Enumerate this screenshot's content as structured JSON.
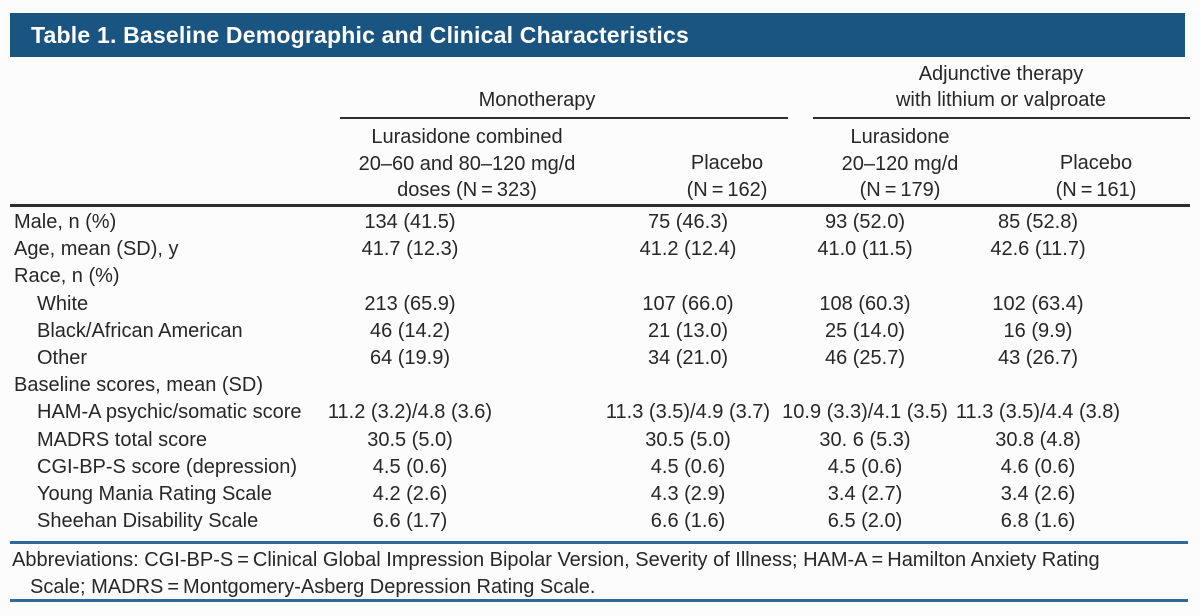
{
  "title": "Table 1. Baseline Demographic and Clinical Characteristics",
  "group_headers": {
    "monotherapy": "Monotherapy",
    "adjunctive_line1": "Adjunctive therapy",
    "adjunctive_line2": "with lithium or valproate"
  },
  "column_headers": [
    {
      "lines": [
        "Lurasidone combined",
        "20–60 and 80–120 mg/d",
        "doses (N = 323)"
      ]
    },
    {
      "lines": [
        "Placebo",
        "(N = 162)"
      ]
    },
    {
      "lines": [
        "Lurasidone",
        "20–120 mg/d",
        "(N = 179)"
      ]
    },
    {
      "lines": [
        "Placebo",
        "(N = 161)"
      ]
    }
  ],
  "rows": [
    {
      "label": "Male, n (%)",
      "indent": false,
      "values": [
        "134 (41.5)",
        "75 (46.3)",
        "93 (52.0)",
        "85 (52.8)"
      ]
    },
    {
      "label": "Age, mean (SD), y",
      "indent": false,
      "values": [
        "41.7 (12.3)",
        "41.2 (12.4)",
        "41.0 (11.5)",
        "42.6 (11.7)"
      ]
    },
    {
      "label": "Race, n (%)",
      "indent": false,
      "values": [
        "",
        "",
        "",
        ""
      ]
    },
    {
      "label": "White",
      "indent": true,
      "values": [
        "213 (65.9)",
        "107 (66.0)",
        "108 (60.3)",
        "102 (63.4)"
      ]
    },
    {
      "label": "Black/African American",
      "indent": true,
      "values": [
        "46 (14.2)",
        "21 (13.0)",
        "25 (14.0)",
        "16 (9.9)"
      ]
    },
    {
      "label": "Other",
      "indent": true,
      "values": [
        "64 (19.9)",
        "34 (21.0)",
        "46 (25.7)",
        "43 (26.7)"
      ]
    },
    {
      "label": "Baseline scores, mean (SD)",
      "indent": false,
      "values": [
        "",
        "",
        "",
        ""
      ]
    },
    {
      "label": "HAM-A psychic/somatic score",
      "indent": true,
      "values": [
        "11.2 (3.2)/4.8 (3.6)",
        "11.3 (3.5)/4.9 (3.7)",
        "10.9 (3.3)/4.1 (3.5)",
        "11.3 (3.5)/4.4 (3.8)"
      ]
    },
    {
      "label": "MADRS total score",
      "indent": true,
      "values": [
        "30.5 (5.0)",
        "30.5 (5.0)",
        "30. 6 (5.3)",
        "30.8 (4.8)"
      ]
    },
    {
      "label": "CGI-BP-S score (depression)",
      "indent": true,
      "values": [
        "4.5 (0.6)",
        "4.5 (0.6)",
        "4.5 (0.6)",
        "4.6 (0.6)"
      ]
    },
    {
      "label": "Young Mania Rating Scale",
      "indent": true,
      "values": [
        "4.2 (2.6)",
        "4.3 (2.9)",
        "3.4 (2.7)",
        "3.4 (2.6)"
      ]
    },
    {
      "label": "Sheehan Disability Scale",
      "indent": true,
      "values": [
        "6.6 (1.7)",
        "6.6 (1.6)",
        "6.5 (2.0)",
        "6.8 (1.6)"
      ]
    }
  ],
  "footnote": {
    "lines": [
      "Abbreviations: CGI-BP-S = Clinical Global Impression Bipolar Version, Severity of Illness; HAM-A = Hamilton Anxiety Rating",
      "Scale; MADRS = Montgomery-Asberg Depression Rating Scale."
    ]
  },
  "colors": {
    "title_bar": "#1a5480",
    "title_text": "#ffffff",
    "text": "#272628",
    "rule_dark": "#2e2d2f",
    "rule_blue": "#30689e",
    "page_bg": "#fcfcfc"
  }
}
